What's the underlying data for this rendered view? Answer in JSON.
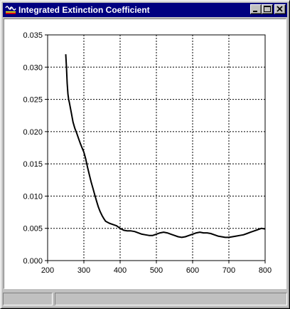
{
  "window": {
    "title": "Integrated Extinction Coefficient",
    "icon": "oscilloscope-app-icon",
    "controls": [
      "minimize",
      "maximize",
      "close"
    ]
  },
  "status_bar": {
    "panes": [
      "",
      ""
    ]
  },
  "colors": {
    "titlebar": "#000080",
    "grid": "#000000",
    "curve": "#000000"
  },
  "chart_data": {
    "type": "line",
    "title": "",
    "xlabel": "",
    "ylabel": "",
    "xlim": [
      200,
      800
    ],
    "ylim": [
      0,
      0.035
    ],
    "x_ticks": [
      200,
      300,
      400,
      500,
      600,
      700,
      800
    ],
    "y_ticks": [
      0.0,
      0.005,
      0.01,
      0.015,
      0.02,
      0.025,
      0.03,
      0.035
    ],
    "x_tick_labels": [
      "200",
      "300",
      "400",
      "500",
      "600",
      "700",
      "800"
    ],
    "y_tick_labels": [
      "0.000",
      "0.005",
      "0.010",
      "0.015",
      "0.020",
      "0.025",
      "0.030",
      "0.035"
    ],
    "grid": true,
    "grid_style": "dotted",
    "legend": "none",
    "series": [
      {
        "x": [
          250,
          252,
          254,
          256,
          258,
          260,
          265,
          270,
          275,
          280,
          285,
          290,
          295,
          300,
          305,
          310,
          315,
          320,
          325,
          330,
          335,
          340,
          345,
          350,
          355,
          360,
          370,
          380,
          390,
          400,
          410,
          420,
          430,
          440,
          450,
          460,
          470,
          480,
          490,
          500,
          510,
          520,
          530,
          540,
          550,
          560,
          570,
          580,
          590,
          600,
          610,
          620,
          630,
          640,
          650,
          660,
          670,
          680,
          690,
          700,
          710,
          720,
          730,
          740,
          750,
          760,
          770,
          780,
          790,
          800
        ],
        "y": [
          0.032,
          0.03,
          0.0275,
          0.0258,
          0.025,
          0.0245,
          0.023,
          0.0215,
          0.0205,
          0.0198,
          0.019,
          0.0182,
          0.0175,
          0.0168,
          0.0158,
          0.0145,
          0.0133,
          0.0122,
          0.0112,
          0.0102,
          0.0092,
          0.0083,
          0.0076,
          0.007,
          0.0065,
          0.0061,
          0.0058,
          0.0056,
          0.0054,
          0.005,
          0.0047,
          0.0046,
          0.0046,
          0.0045,
          0.0043,
          0.0041,
          0.004,
          0.0039,
          0.0039,
          0.0041,
          0.0043,
          0.0044,
          0.0043,
          0.0041,
          0.0039,
          0.0037,
          0.0036,
          0.0037,
          0.0039,
          0.0041,
          0.0043,
          0.0044,
          0.0043,
          0.0043,
          0.0042,
          0.004,
          0.0038,
          0.0037,
          0.0036,
          0.0036,
          0.0037,
          0.0038,
          0.0039,
          0.004,
          0.0042,
          0.0044,
          0.0046,
          0.0048,
          0.005,
          0.0049
        ]
      }
    ]
  }
}
